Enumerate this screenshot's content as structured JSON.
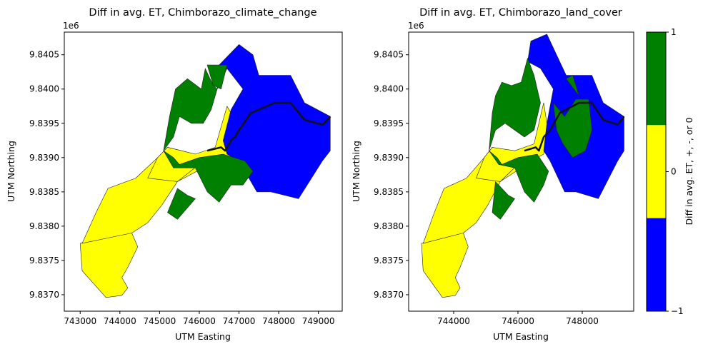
{
  "chart_data": [
    {
      "type": "map",
      "title": "Diff in avg. ET, Chimborazo_climate_change",
      "xlabel": "UTM Easting",
      "ylabel": "UTM Northing",
      "offset_label": "1e6",
      "xlim": [
        742600,
        749600
      ],
      "ylim": [
        9836760,
        9840830
      ],
      "xticks": [
        743000,
        744000,
        745000,
        746000,
        747000,
        748000,
        749000
      ],
      "xtick_labels": [
        "743000",
        "744000",
        "745000",
        "746000",
        "747000",
        "748000",
        "749000"
      ],
      "yticks": [
        9837000,
        9837500,
        9838000,
        9838500,
        9839000,
        9839500,
        9840000,
        9840500
      ],
      "ytick_labels": [
        "9.8370",
        "9.8375",
        "9.8380",
        "9.8385",
        "9.8390",
        "9.8395",
        "9.8400",
        "9.8405"
      ],
      "categories": [
        "+",
        "-",
        "0"
      ],
      "regions": [
        {
          "category": "0",
          "points": [
            [
              744000,
              9837900
            ],
            [
              743000,
              9837750
            ],
            [
              743050,
              9837350
            ],
            [
              743650,
              9836960
            ],
            [
              744050,
              9836990
            ],
            [
              744200,
              9837100
            ],
            [
              744050,
              9837250
            ],
            [
              744200,
              9837400
            ],
            [
              744450,
              9837700
            ],
            [
              744300,
              9837900
            ]
          ]
        },
        {
          "category": "0",
          "points": [
            [
              744300,
              9837900
            ],
            [
              743050,
              9837750
            ],
            [
              743400,
              9838200
            ],
            [
              743700,
              9838550
            ],
            [
              744400,
              9838700
            ],
            [
              744950,
              9839000
            ],
            [
              745200,
              9839150
            ],
            [
              745900,
              9839050
            ],
            [
              746100,
              9838850
            ],
            [
              745450,
              9838650
            ],
            [
              745050,
              9838300
            ],
            [
              744700,
              9838050
            ]
          ]
        },
        {
          "category": "0",
          "points": [
            [
              745450,
              9838650
            ],
            [
              746000,
              9838900
            ],
            [
              746500,
              9838950
            ],
            [
              747150,
              9838950
            ],
            [
              747000,
              9839450
            ],
            [
              746700,
              9839750
            ],
            [
              746400,
              9839150
            ],
            [
              745900,
              9839050
            ],
            [
              745200,
              9839150
            ],
            [
              744950,
              9839000
            ],
            [
              744700,
              9838700
            ]
          ]
        },
        {
          "category": "-",
          "points": [
            [
              746450,
              9840000
            ],
            [
              746500,
              9840350
            ],
            [
              747000,
              9840650
            ],
            [
              747350,
              9840500
            ],
            [
              747500,
              9840200
            ],
            [
              748300,
              9840200
            ],
            [
              748650,
              9839800
            ],
            [
              749300,
              9839600
            ],
            [
              749300,
              9839100
            ],
            [
              749100,
              9838950
            ],
            [
              748500,
              9838400
            ],
            [
              747800,
              9838500
            ],
            [
              747450,
              9838500
            ],
            [
              747250,
              9838700
            ],
            [
              747000,
              9838950
            ],
            [
              746700,
              9839050
            ],
            [
              746600,
              9839250
            ],
            [
              746800,
              9839700
            ],
            [
              747100,
              9840000
            ],
            [
              746700,
              9840300
            ]
          ]
        },
        {
          "category": "+",
          "points": [
            [
              745400,
              9840000
            ],
            [
              745700,
              9840150
            ],
            [
              746050,
              9840000
            ],
            [
              746150,
              9840300
            ],
            [
              746350,
              9840050
            ],
            [
              746450,
              9840000
            ],
            [
              746300,
              9839700
            ],
            [
              746100,
              9839500
            ],
            [
              745800,
              9839500
            ],
            [
              745500,
              9839600
            ],
            [
              745350,
              9839300
            ],
            [
              745100,
              9839100
            ],
            [
              745250,
              9839600
            ]
          ]
        },
        {
          "category": "+",
          "points": [
            [
              745100,
              9839100
            ],
            [
              745350,
              9838850
            ],
            [
              745900,
              9838850
            ],
            [
              746200,
              9838500
            ],
            [
              746500,
              9838350
            ],
            [
              746800,
              9838600
            ],
            [
              747100,
              9838600
            ],
            [
              747350,
              9838800
            ],
            [
              747150,
              9838950
            ],
            [
              746600,
              9839050
            ],
            [
              746000,
              9839000
            ],
            [
              745500,
              9838900
            ],
            [
              745350,
              9839000
            ]
          ]
        },
        {
          "category": "+",
          "points": [
            [
              745450,
              9838550
            ],
            [
              745700,
              9838450
            ],
            [
              745900,
              9838400
            ],
            [
              745450,
              9838100
            ],
            [
              745200,
              9838200
            ]
          ]
        },
        {
          "category": "+",
          "points": [
            [
              746200,
              9840350
            ],
            [
              746350,
              9840050
            ],
            [
              746550,
              9840000
            ],
            [
              746700,
              9840350
            ]
          ]
        }
      ],
      "path": [
        [
          746200,
          9839100
        ],
        [
          746550,
          9839150
        ],
        [
          746650,
          9839100
        ],
        [
          746800,
          9839250
        ],
        [
          746900,
          9839300
        ],
        [
          747000,
          9839400
        ],
        [
          747300,
          9839650
        ],
        [
          747900,
          9839800
        ],
        [
          748300,
          9839800
        ],
        [
          748650,
          9839550
        ],
        [
          749100,
          9839480
        ],
        [
          749300,
          9839600
        ]
      ]
    },
    {
      "type": "map",
      "title": "Diff in avg. ET, Chimborazo_land_cover",
      "xlabel": "UTM Easting",
      "ylabel": "UTM Northing",
      "offset_label": "1e6",
      "xlim": [
        742600,
        749600
      ],
      "ylim": [
        9836760,
        9840830
      ],
      "xticks": [
        744000,
        746000,
        748000
      ],
      "xtick_labels": [
        "744000",
        "746000",
        "748000"
      ],
      "yticks": [
        9837000,
        9837500,
        9838000,
        9838500,
        9839000,
        9839500,
        9840000,
        9840500
      ],
      "ytick_labels": [
        "9.8370",
        "9.8375",
        "9.8380",
        "9.8385",
        "9.8390",
        "9.8395",
        "9.8400",
        "9.8405"
      ],
      "categories": [
        "+",
        "-",
        "0"
      ],
      "regions": [
        {
          "category": "0",
          "points": [
            [
              744000,
              9837900
            ],
            [
              743000,
              9837750
            ],
            [
              743050,
              9837350
            ],
            [
              743650,
              9836960
            ],
            [
              744050,
              9836990
            ],
            [
              744200,
              9837100
            ],
            [
              744050,
              9837250
            ],
            [
              744200,
              9837400
            ],
            [
              744450,
              9837700
            ],
            [
              744300,
              9837900
            ]
          ]
        },
        {
          "category": "0",
          "points": [
            [
              744300,
              9837900
            ],
            [
              743050,
              9837750
            ],
            [
              743400,
              9838200
            ],
            [
              743700,
              9838550
            ],
            [
              744400,
              9838700
            ],
            [
              744950,
              9839000
            ],
            [
              745200,
              9839150
            ],
            [
              745900,
              9839050
            ],
            [
              746100,
              9838850
            ],
            [
              745450,
              9838650
            ],
            [
              745050,
              9838300
            ],
            [
              744700,
              9838050
            ]
          ]
        },
        {
          "category": "0",
          "points": [
            [
              745450,
              9838650
            ],
            [
              746000,
              9838900
            ],
            [
              746400,
              9838950
            ],
            [
              746800,
              9839050
            ],
            [
              746900,
              9839500
            ],
            [
              746800,
              9839800
            ],
            [
              746500,
              9839200
            ],
            [
              745900,
              9839100
            ],
            [
              745200,
              9839150
            ],
            [
              744950,
              9839000
            ],
            [
              744700,
              9838700
            ]
          ]
        },
        {
          "category": "-",
          "points": [
            [
              746300,
              9840400
            ],
            [
              746400,
              9840700
            ],
            [
              746900,
              9840800
            ],
            [
              747200,
              9840500
            ],
            [
              747500,
              9840200
            ],
            [
              748300,
              9840200
            ],
            [
              748650,
              9839800
            ],
            [
              749300,
              9839600
            ],
            [
              749300,
              9839100
            ],
            [
              749100,
              9838950
            ],
            [
              748500,
              9838400
            ],
            [
              747800,
              9838500
            ],
            [
              747450,
              9838500
            ],
            [
              747250,
              9838700
            ],
            [
              747000,
              9838950
            ],
            [
              746800,
              9839100
            ],
            [
              746900,
              9839500
            ],
            [
              747100,
              9840000
            ],
            [
              746700,
              9840300
            ]
          ]
        },
        {
          "category": "+",
          "points": [
            [
              745300,
              9839900
            ],
            [
              745500,
              9840100
            ],
            [
              745800,
              9840050
            ],
            [
              746100,
              9840100
            ],
            [
              746300,
              9840450
            ],
            [
              746500,
              9840200
            ],
            [
              746700,
              9839800
            ],
            [
              746500,
              9839400
            ],
            [
              746200,
              9839300
            ],
            [
              745900,
              9839400
            ],
            [
              745600,
              9839500
            ],
            [
              745300,
              9839400
            ],
            [
              745100,
              9839100
            ],
            [
              745200,
              9839650
            ]
          ]
        },
        {
          "category": "+",
          "points": [
            [
              745100,
              9839100
            ],
            [
              745400,
              9838900
            ],
            [
              745900,
              9838850
            ],
            [
              746200,
              9838500
            ],
            [
              746500,
              9838350
            ],
            [
              746800,
              9838600
            ],
            [
              746950,
              9838800
            ],
            [
              746600,
              9839050
            ],
            [
              746000,
              9839000
            ],
            [
              745500,
              9838900
            ],
            [
              745350,
              9839000
            ]
          ]
        },
        {
          "category": "+",
          "points": [
            [
              745300,
              9838650
            ],
            [
              745700,
              9838450
            ],
            [
              745900,
              9838400
            ],
            [
              745450,
              9838100
            ],
            [
              745200,
              9838200
            ]
          ]
        },
        {
          "category": "+",
          "points": [
            [
              747100,
              9839800
            ],
            [
              747450,
              9839600
            ],
            [
              747800,
              9839850
            ],
            [
              748200,
              9839850
            ],
            [
              748300,
              9839400
            ],
            [
              748100,
              9839100
            ],
            [
              747700,
              9839000
            ],
            [
              747400,
              9839200
            ],
            [
              747200,
              9839400
            ]
          ]
        },
        {
          "category": "+",
          "points": [
            [
              747500,
              9840150
            ],
            [
              747700,
              9840200
            ],
            [
              747900,
              9839900
            ]
          ]
        }
      ],
      "path": [
        [
          746200,
          9839100
        ],
        [
          746550,
          9839150
        ],
        [
          746650,
          9839100
        ],
        [
          746800,
          9839300
        ],
        [
          746900,
          9839350
        ],
        [
          747000,
          9839400
        ],
        [
          747300,
          9839650
        ],
        [
          747900,
          9839800
        ],
        [
          748300,
          9839800
        ],
        [
          748650,
          9839550
        ],
        [
          749100,
          9839480
        ],
        [
          749300,
          9839600
        ]
      ]
    }
  ],
  "colorbar": {
    "label": "Diff in avg. ET, +, -, or 0",
    "tick_labels": [
      "1",
      "0",
      "−1"
    ],
    "segments": [
      {
        "category": "+",
        "color": "#008000"
      },
      {
        "category": "0",
        "color": "#ffff00"
      },
      {
        "category": "-",
        "color": "#0000ff"
      }
    ]
  },
  "colors": {
    "+": "#008000",
    "0": "#ffff00",
    "-": "#0000ff"
  }
}
